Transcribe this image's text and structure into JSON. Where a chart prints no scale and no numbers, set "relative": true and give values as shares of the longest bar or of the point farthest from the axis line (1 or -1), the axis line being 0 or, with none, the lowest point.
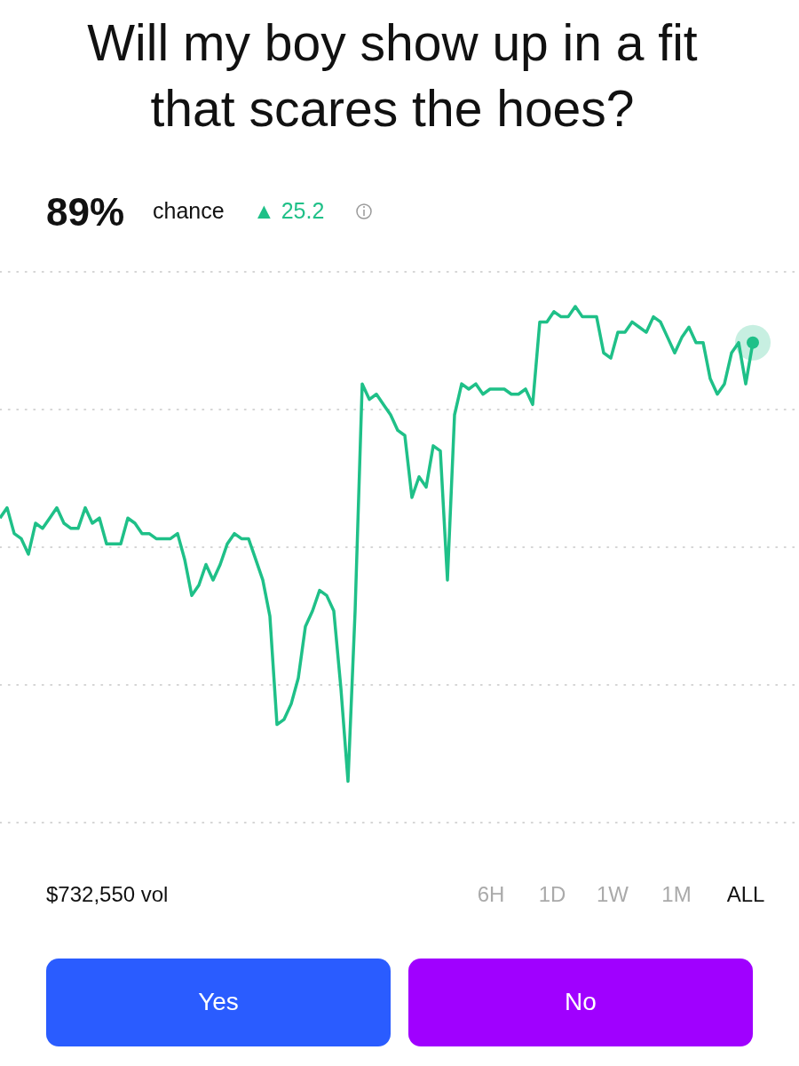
{
  "chart_data": {
    "type": "line",
    "title": "Will my boy show up in a fit that scares the hoes?",
    "relative": true,
    "grid": "y",
    "marker": "none",
    "line_style": "solid",
    "categories": [
      null,
      null,
      null,
      null,
      null,
      null,
      null,
      null,
      null,
      null,
      null,
      null,
      null,
      null,
      null,
      null,
      null,
      null,
      null,
      null,
      null,
      null,
      null,
      null,
      null,
      null,
      null,
      null,
      null,
      null,
      null,
      null,
      null,
      null,
      null,
      null,
      null,
      null,
      null,
      null,
      null,
      null,
      null,
      null,
      null,
      null,
      null,
      null,
      null,
      null,
      null,
      null,
      null,
      null,
      null,
      null,
      null,
      null,
      null,
      null,
      null,
      null,
      null,
      null,
      null,
      null,
      null,
      null,
      null,
      null,
      null,
      null,
      null,
      null,
      null,
      null,
      null,
      null,
      null,
      null,
      null,
      null,
      null,
      null,
      null,
      null,
      null,
      null,
      null,
      null,
      null,
      null,
      null,
      null,
      null,
      null,
      null,
      null,
      null,
      null,
      null,
      null,
      null,
      null,
      null,
      null,
      null
    ],
    "series": [
      {
        "color": "#1fc088",
        "values": [
          0.59,
          0.61,
          0.56,
          0.55,
          0.52,
          0.58,
          0.57,
          0.59,
          0.61,
          0.58,
          0.57,
          0.57,
          0.61,
          0.58,
          0.59,
          0.54,
          0.54,
          0.54,
          0.59,
          0.58,
          0.56,
          0.56,
          0.55,
          0.55,
          0.55,
          0.56,
          0.51,
          0.44,
          0.46,
          0.5,
          0.47,
          0.5,
          0.54,
          0.56,
          0.55,
          0.55,
          0.51,
          0.47,
          0.4,
          0.19,
          0.2,
          0.23,
          0.28,
          0.38,
          0.41,
          0.45,
          0.44,
          0.41,
          0.26,
          0.08,
          0.41,
          0.85,
          0.82,
          0.83,
          0.81,
          0.79,
          0.76,
          0.75,
          0.63,
          0.67,
          0.65,
          0.73,
          0.72,
          0.47,
          0.79,
          0.85,
          0.84,
          0.85,
          0.83,
          0.84,
          0.84,
          0.84,
          0.83,
          0.83,
          0.84,
          0.81,
          0.97,
          0.97,
          0.99,
          0.98,
          0.98,
          1,
          0.98,
          0.98,
          0.98,
          0.91,
          0.9,
          0.95,
          0.95,
          0.97,
          0.96,
          0.95,
          0.98,
          0.97,
          0.94,
          0.91,
          0.94,
          0.96,
          0.93,
          0.93,
          0.86,
          0.83,
          0.85,
          0.91,
          0.93,
          0.85,
          0.93
        ]
      }
    ],
    "annotations": [
      "89%",
      "chance",
      "▲ 25.2",
      "$732,550 vol",
      "6H",
      "1D",
      "1W",
      "1M",
      "ALL",
      "Yes",
      "No"
    ]
  }
}
